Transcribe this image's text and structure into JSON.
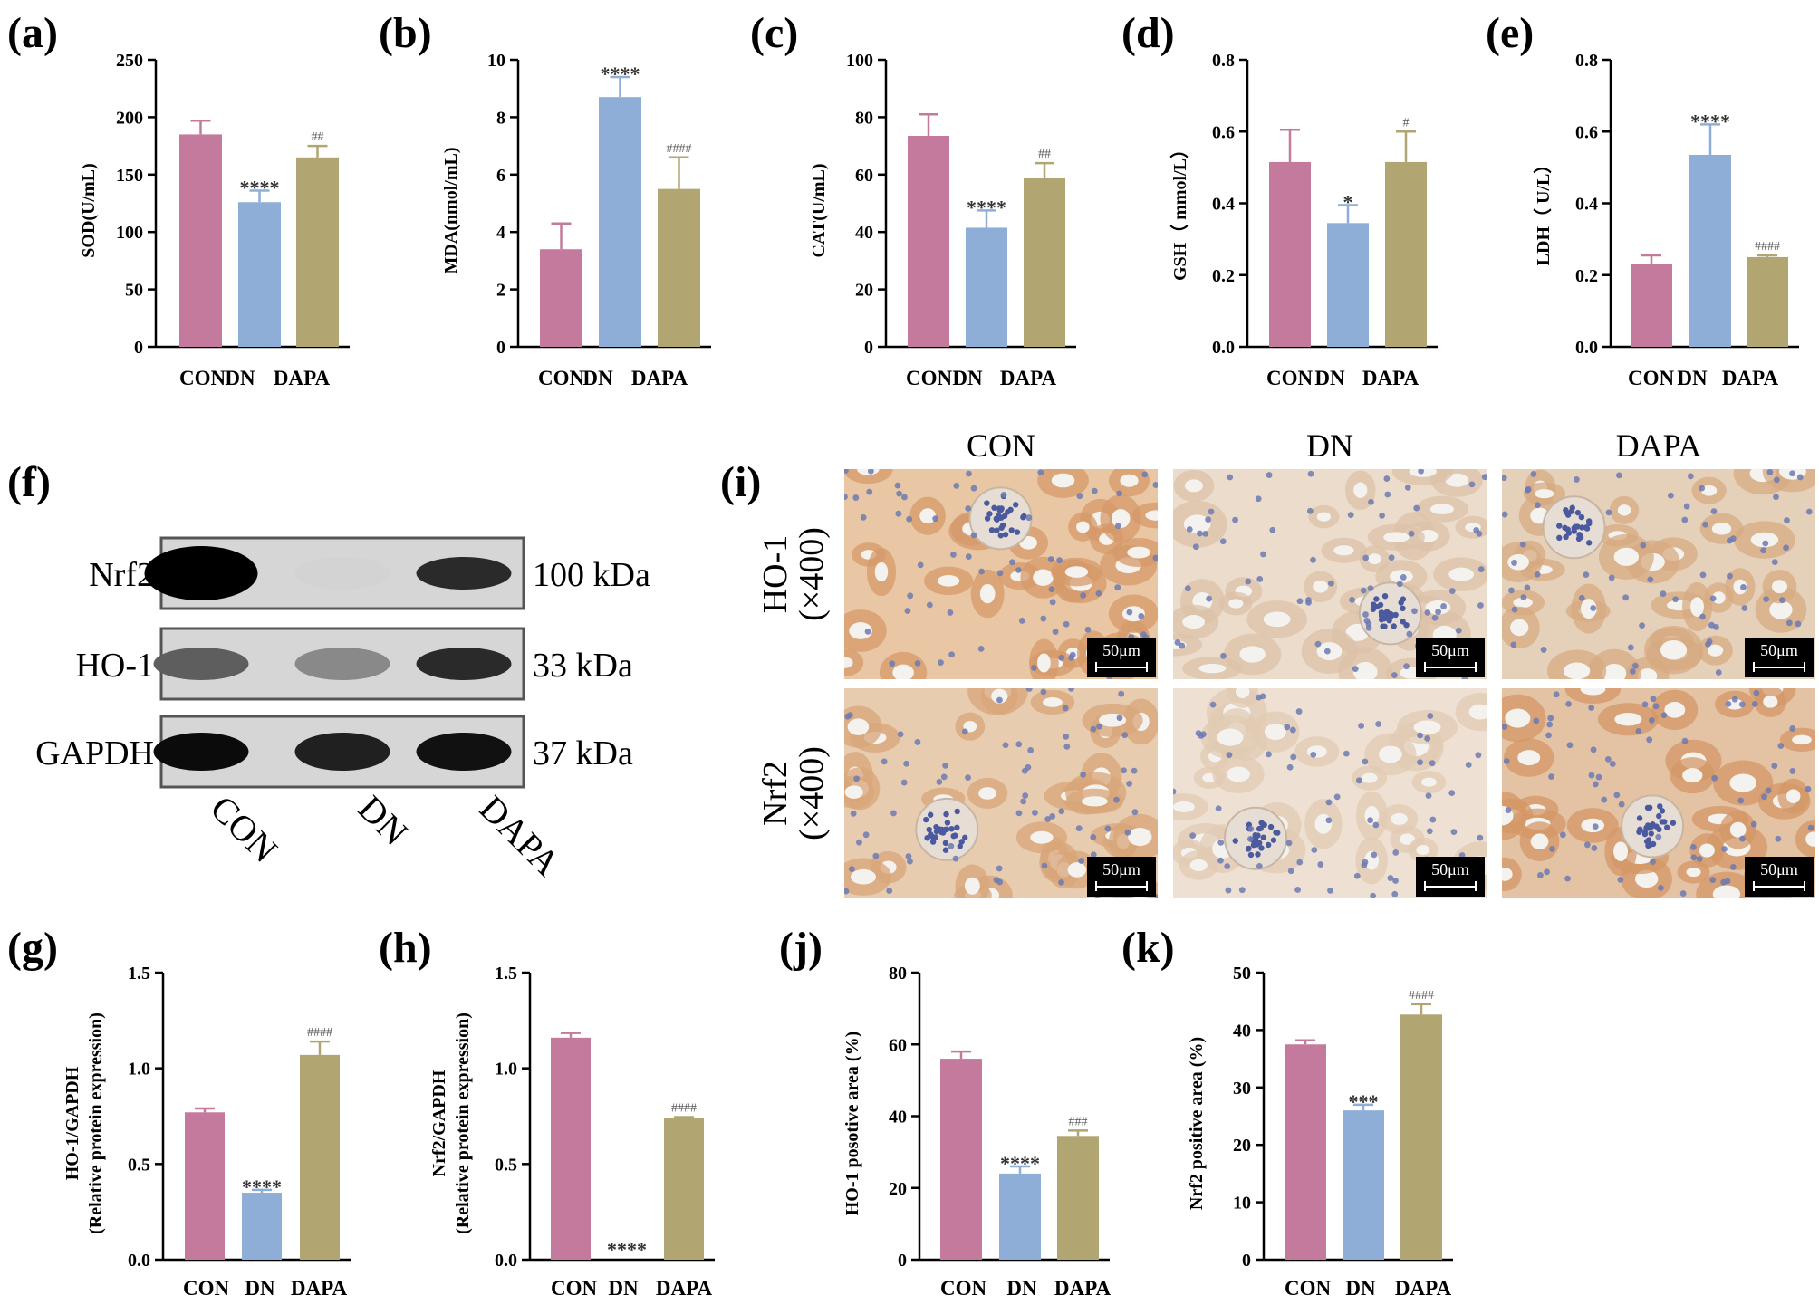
{
  "colors": {
    "CON": "#c37a9c",
    "DN": "#8eaed8",
    "DAPA": "#b1a672",
    "axis": "#000000"
  },
  "chart_data": [
    {
      "id": "a",
      "type": "bar",
      "panel_label": "(a)",
      "ylabel": "SOD(U/mL)",
      "categories": [
        "CON",
        "DN",
        "DAPA"
      ],
      "values": [
        185,
        126,
        165
      ],
      "errors": [
        12,
        10,
        10
      ],
      "sig": [
        "",
        "****",
        "##"
      ],
      "ylim": [
        0,
        250
      ],
      "yticks": [
        "0",
        "50",
        "100",
        "150",
        "200",
        "250"
      ]
    },
    {
      "id": "b",
      "type": "bar",
      "panel_label": "(b)",
      "ylabel": "MDA(nmol/mL)",
      "categories": [
        "CON",
        "DN",
        "DAPA"
      ],
      "values": [
        3.4,
        8.7,
        5.5
      ],
      "errors": [
        0.9,
        0.7,
        1.1
      ],
      "sig": [
        "",
        "****",
        "####"
      ],
      "ylim": [
        0,
        10
      ],
      "yticks": [
        "0",
        "2",
        "4",
        "6",
        "8",
        "10"
      ]
    },
    {
      "id": "c",
      "type": "bar",
      "panel_label": "(c)",
      "ylabel": "CAT(U/mL)",
      "categories": [
        "CON",
        "DN",
        "DAPA"
      ],
      "values": [
        73.5,
        41.5,
        59
      ],
      "errors": [
        7.5,
        6,
        5
      ],
      "sig": [
        "",
        "****",
        "##"
      ],
      "ylim": [
        0,
        100
      ],
      "yticks": [
        "0",
        "20",
        "40",
        "60",
        "80",
        "100"
      ]
    },
    {
      "id": "d",
      "type": "bar",
      "panel_label": "(d)",
      "ylabel": "GSH（ mmol/L）",
      "categories": [
        "CON",
        "DN",
        "DAPA"
      ],
      "values": [
        0.515,
        0.345,
        0.515
      ],
      "errors": [
        0.09,
        0.05,
        0.085
      ],
      "sig": [
        "",
        "*",
        "#"
      ],
      "ylim": [
        0,
        0.8
      ],
      "yticks": [
        "0.0",
        "0.2",
        "0.4",
        "0.6",
        "0.8"
      ]
    },
    {
      "id": "e",
      "type": "bar",
      "panel_label": "(e)",
      "ylabel": "LDH（ U/L）",
      "categories": [
        "CON",
        "DN",
        "DAPA"
      ],
      "values": [
        0.23,
        0.535,
        0.25
      ],
      "errors": [
        0.025,
        0.085,
        0.005
      ],
      "sig": [
        "",
        "****",
        "####"
      ],
      "ylim": [
        0,
        0.8
      ],
      "yticks": [
        "0.0",
        "0.2",
        "0.4",
        "0.6",
        "0.8"
      ]
    },
    {
      "id": "g",
      "type": "bar",
      "panel_label": "(g)",
      "ylabel": "HO-1/GAPDH",
      "ylabel2": "(Relative protein expression)",
      "categories": [
        "CON",
        "DN",
        "DAPA"
      ],
      "values": [
        0.77,
        0.35,
        1.07
      ],
      "errors": [
        0.02,
        0.015,
        0.07
      ],
      "sig": [
        "",
        "****",
        "####"
      ],
      "ylim": [
        0,
        1.5
      ],
      "yticks": [
        "0.0",
        "0.5",
        "1.0",
        "1.5"
      ]
    },
    {
      "id": "h",
      "type": "bar",
      "panel_label": "(h)",
      "ylabel": "Nrf2/GAPDH",
      "ylabel2": "(Relative protein expression)",
      "categories": [
        "CON",
        "DN",
        "DAPA"
      ],
      "values": [
        1.16,
        0.0,
        0.74
      ],
      "errors": [
        0.025,
        0.0,
        0.005
      ],
      "sig": [
        "",
        "****",
        "####"
      ],
      "ylim": [
        0,
        1.5
      ],
      "yticks": [
        "0.0",
        "0.5",
        "1.0",
        "1.5"
      ]
    },
    {
      "id": "j",
      "type": "bar",
      "panel_label": "(j)",
      "ylabel": "HO-1 posotive area (%)",
      "categories": [
        "CON",
        "DN",
        "DAPA"
      ],
      "values": [
        56,
        24,
        34.5
      ],
      "errors": [
        2,
        2,
        1.5
      ],
      "sig": [
        "",
        "****",
        "###"
      ],
      "ylim": [
        0,
        80
      ],
      "yticks": [
        "0",
        "20",
        "40",
        "60",
        "80"
      ]
    },
    {
      "id": "k",
      "type": "bar",
      "panel_label": "(k)",
      "ylabel": "Nrf2 positive area (%)",
      "categories": [
        "CON",
        "DN",
        "DAPA"
      ],
      "values": [
        37.5,
        26,
        42.7
      ],
      "errors": [
        0.7,
        1,
        1.8
      ],
      "sig": [
        "",
        "***",
        "####"
      ],
      "ylim": [
        0,
        50
      ],
      "yticks": [
        "0",
        "10",
        "20",
        "30",
        "40",
        "50"
      ]
    }
  ],
  "western_blot": {
    "panel_label": "(f)",
    "rows": [
      {
        "protein": "Nrf2",
        "kda": "100 kDa",
        "intensity": [
          1.0,
          0.04,
          0.8
        ]
      },
      {
        "protein": "HO-1",
        "kda": "33 kDa",
        "intensity": [
          0.55,
          0.35,
          0.8
        ]
      },
      {
        "protein": "GAPDH",
        "kda": "37 kDa",
        "intensity": [
          0.95,
          0.85,
          0.92
        ]
      }
    ],
    "lanes": [
      "CON",
      "DN",
      "DAPA"
    ]
  },
  "ihc": {
    "panel_label": "(i)",
    "columns": [
      "CON",
      "DN",
      "DAPA"
    ],
    "rows": [
      {
        "label": "HO-1",
        "magnification": "(×400)"
      },
      {
        "label": "Nrf2",
        "magnification": "(×400)"
      }
    ],
    "scale_bar": "50μm"
  }
}
